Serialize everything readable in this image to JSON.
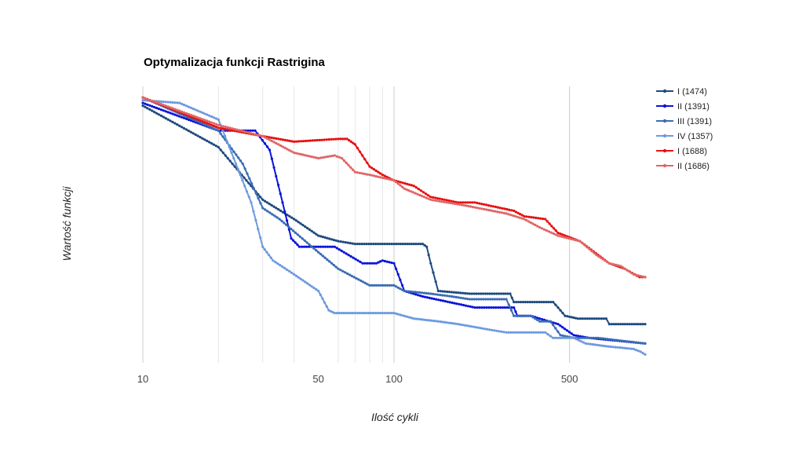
{
  "chart_data": {
    "type": "line",
    "title": "Optymalizacja funkcji Rastrigina",
    "xlabel": "Ilość cykli",
    "ylabel": "Wartość funkcji",
    "x_scale": "log",
    "xlim": [
      10,
      1000
    ],
    "ylim": [
      0,
      1
    ],
    "x_ticks": [
      10,
      50,
      100,
      500
    ],
    "x_tick_labels": [
      "10",
      "50",
      "100",
      "500"
    ],
    "minor_gridlines": [
      20,
      30,
      40,
      60,
      70,
      80,
      90
    ],
    "major_gridlines": [
      10,
      100,
      500
    ],
    "y_tick_labels": [],
    "legend": "right",
    "series": [
      {
        "name": "I (1474)",
        "color": "#1f4a7f",
        "points": [
          [
            10,
            0.93
          ],
          [
            20,
            0.78
          ],
          [
            30,
            0.59
          ],
          [
            40,
            0.52
          ],
          [
            50,
            0.46
          ],
          [
            60,
            0.44
          ],
          [
            70,
            0.43
          ],
          [
            100,
            0.43
          ],
          [
            130,
            0.43
          ],
          [
            135,
            0.42
          ],
          [
            140,
            0.36
          ],
          [
            150,
            0.26
          ],
          [
            200,
            0.25
          ],
          [
            290,
            0.25
          ],
          [
            300,
            0.22
          ],
          [
            430,
            0.22
          ],
          [
            450,
            0.2
          ],
          [
            480,
            0.17
          ],
          [
            540,
            0.16
          ],
          [
            700,
            0.16
          ],
          [
            720,
            0.14
          ],
          [
            1000,
            0.14
          ]
        ]
      },
      {
        "name": "II (1391)",
        "color": "#0b14d9",
        "points": [
          [
            10,
            0.94
          ],
          [
            20,
            0.84
          ],
          [
            28,
            0.84
          ],
          [
            32,
            0.77
          ],
          [
            36,
            0.58
          ],
          [
            39,
            0.45
          ],
          [
            42,
            0.42
          ],
          [
            50,
            0.42
          ],
          [
            58,
            0.42
          ],
          [
            75,
            0.36
          ],
          [
            85,
            0.36
          ],
          [
            90,
            0.37
          ],
          [
            100,
            0.36
          ],
          [
            110,
            0.26
          ],
          [
            130,
            0.24
          ],
          [
            210,
            0.2
          ],
          [
            260,
            0.2
          ],
          [
            300,
            0.2
          ],
          [
            310,
            0.17
          ],
          [
            350,
            0.17
          ],
          [
            450,
            0.14
          ],
          [
            520,
            0.1
          ],
          [
            600,
            0.09
          ],
          [
            1000,
            0.07
          ]
        ]
      },
      {
        "name": "III (1391)",
        "color": "#3b6db3",
        "points": [
          [
            10,
            0.96
          ],
          [
            20,
            0.84
          ],
          [
            25,
            0.72
          ],
          [
            30,
            0.56
          ],
          [
            35,
            0.52
          ],
          [
            50,
            0.4
          ],
          [
            60,
            0.34
          ],
          [
            80,
            0.28
          ],
          [
            100,
            0.28
          ],
          [
            110,
            0.26
          ],
          [
            140,
            0.25
          ],
          [
            170,
            0.24
          ],
          [
            200,
            0.23
          ],
          [
            280,
            0.23
          ],
          [
            300,
            0.17
          ],
          [
            350,
            0.17
          ],
          [
            380,
            0.15
          ],
          [
            420,
            0.15
          ],
          [
            460,
            0.1
          ],
          [
            520,
            0.09
          ],
          [
            650,
            0.09
          ],
          [
            800,
            0.08
          ],
          [
            1000,
            0.07
          ]
        ]
      },
      {
        "name": "IV (1357)",
        "color": "#6c9ae0",
        "points": [
          [
            10,
            0.95
          ],
          [
            14,
            0.94
          ],
          [
            20,
            0.88
          ],
          [
            23,
            0.74
          ],
          [
            27,
            0.58
          ],
          [
            30,
            0.42
          ],
          [
            33,
            0.37
          ],
          [
            40,
            0.32
          ],
          [
            50,
            0.26
          ],
          [
            55,
            0.19
          ],
          [
            58,
            0.18
          ],
          [
            70,
            0.18
          ],
          [
            100,
            0.18
          ],
          [
            120,
            0.16
          ],
          [
            150,
            0.15
          ],
          [
            180,
            0.14
          ],
          [
            240,
            0.12
          ],
          [
            280,
            0.11
          ],
          [
            400,
            0.11
          ],
          [
            430,
            0.09
          ],
          [
            520,
            0.09
          ],
          [
            580,
            0.07
          ],
          [
            700,
            0.06
          ],
          [
            900,
            0.05
          ],
          [
            960,
            0.04
          ],
          [
            1000,
            0.03
          ]
        ]
      },
      {
        "name": "I (1688)",
        "color": "#e81010",
        "points": [
          [
            10,
            0.96
          ],
          [
            20,
            0.85
          ],
          [
            30,
            0.82
          ],
          [
            40,
            0.8
          ],
          [
            60,
            0.81
          ],
          [
            65,
            0.81
          ],
          [
            70,
            0.79
          ],
          [
            80,
            0.71
          ],
          [
            90,
            0.68
          ],
          [
            100,
            0.66
          ],
          [
            120,
            0.64
          ],
          [
            140,
            0.6
          ],
          [
            180,
            0.58
          ],
          [
            210,
            0.58
          ],
          [
            300,
            0.55
          ],
          [
            330,
            0.53
          ],
          [
            400,
            0.52
          ],
          [
            450,
            0.47
          ],
          [
            550,
            0.44
          ],
          [
            650,
            0.39
          ],
          [
            720,
            0.36
          ],
          [
            830,
            0.34
          ],
          [
            950,
            0.31
          ],
          [
            1000,
            0.31
          ]
        ]
      },
      {
        "name": "II (1686)",
        "color": "#e06666",
        "points": [
          [
            10,
            0.96
          ],
          [
            20,
            0.86
          ],
          [
            30,
            0.82
          ],
          [
            40,
            0.76
          ],
          [
            50,
            0.74
          ],
          [
            58,
            0.75
          ],
          [
            62,
            0.74
          ],
          [
            70,
            0.69
          ],
          [
            80,
            0.68
          ],
          [
            100,
            0.66
          ],
          [
            110,
            0.63
          ],
          [
            140,
            0.59
          ],
          [
            190,
            0.57
          ],
          [
            280,
            0.54
          ],
          [
            330,
            0.52
          ],
          [
            380,
            0.49
          ],
          [
            450,
            0.46
          ],
          [
            550,
            0.44
          ],
          [
            640,
            0.39
          ],
          [
            720,
            0.36
          ],
          [
            800,
            0.35
          ],
          [
            900,
            0.32
          ],
          [
            1000,
            0.31
          ]
        ]
      }
    ]
  }
}
